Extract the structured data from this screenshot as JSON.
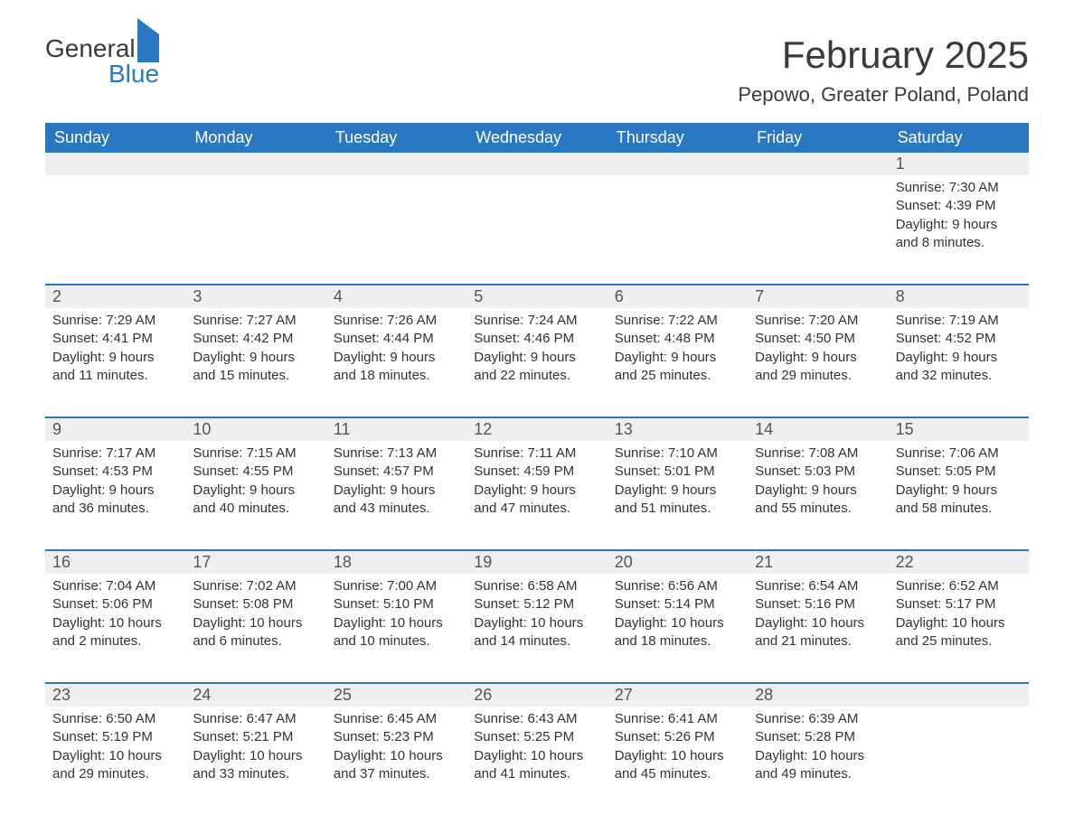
{
  "logo": {
    "line1": "General",
    "line2": "Blue"
  },
  "title": "February 2025",
  "location": "Pepowo, Greater Poland, Poland",
  "colors": {
    "header_bg": "#2b78c2",
    "header_text": "#ffffff",
    "strip_bg": "#efefef",
    "rule": "#2b78c2",
    "text": "#333333",
    "daynum": "#555555",
    "background": "#ffffff"
  },
  "weekdays": [
    "Sunday",
    "Monday",
    "Tuesday",
    "Wednesday",
    "Thursday",
    "Friday",
    "Saturday"
  ],
  "weeks": [
    [
      null,
      null,
      null,
      null,
      null,
      null,
      {
        "n": "1",
        "sunrise": "Sunrise: 7:30 AM",
        "sunset": "Sunset: 4:39 PM",
        "day1": "Daylight: 9 hours",
        "day2": "and 8 minutes."
      }
    ],
    [
      {
        "n": "2",
        "sunrise": "Sunrise: 7:29 AM",
        "sunset": "Sunset: 4:41 PM",
        "day1": "Daylight: 9 hours",
        "day2": "and 11 minutes."
      },
      {
        "n": "3",
        "sunrise": "Sunrise: 7:27 AM",
        "sunset": "Sunset: 4:42 PM",
        "day1": "Daylight: 9 hours",
        "day2": "and 15 minutes."
      },
      {
        "n": "4",
        "sunrise": "Sunrise: 7:26 AM",
        "sunset": "Sunset: 4:44 PM",
        "day1": "Daylight: 9 hours",
        "day2": "and 18 minutes."
      },
      {
        "n": "5",
        "sunrise": "Sunrise: 7:24 AM",
        "sunset": "Sunset: 4:46 PM",
        "day1": "Daylight: 9 hours",
        "day2": "and 22 minutes."
      },
      {
        "n": "6",
        "sunrise": "Sunrise: 7:22 AM",
        "sunset": "Sunset: 4:48 PM",
        "day1": "Daylight: 9 hours",
        "day2": "and 25 minutes."
      },
      {
        "n": "7",
        "sunrise": "Sunrise: 7:20 AM",
        "sunset": "Sunset: 4:50 PM",
        "day1": "Daylight: 9 hours",
        "day2": "and 29 minutes."
      },
      {
        "n": "8",
        "sunrise": "Sunrise: 7:19 AM",
        "sunset": "Sunset: 4:52 PM",
        "day1": "Daylight: 9 hours",
        "day2": "and 32 minutes."
      }
    ],
    [
      {
        "n": "9",
        "sunrise": "Sunrise: 7:17 AM",
        "sunset": "Sunset: 4:53 PM",
        "day1": "Daylight: 9 hours",
        "day2": "and 36 minutes."
      },
      {
        "n": "10",
        "sunrise": "Sunrise: 7:15 AM",
        "sunset": "Sunset: 4:55 PM",
        "day1": "Daylight: 9 hours",
        "day2": "and 40 minutes."
      },
      {
        "n": "11",
        "sunrise": "Sunrise: 7:13 AM",
        "sunset": "Sunset: 4:57 PM",
        "day1": "Daylight: 9 hours",
        "day2": "and 43 minutes."
      },
      {
        "n": "12",
        "sunrise": "Sunrise: 7:11 AM",
        "sunset": "Sunset: 4:59 PM",
        "day1": "Daylight: 9 hours",
        "day2": "and 47 minutes."
      },
      {
        "n": "13",
        "sunrise": "Sunrise: 7:10 AM",
        "sunset": "Sunset: 5:01 PM",
        "day1": "Daylight: 9 hours",
        "day2": "and 51 minutes."
      },
      {
        "n": "14",
        "sunrise": "Sunrise: 7:08 AM",
        "sunset": "Sunset: 5:03 PM",
        "day1": "Daylight: 9 hours",
        "day2": "and 55 minutes."
      },
      {
        "n": "15",
        "sunrise": "Sunrise: 7:06 AM",
        "sunset": "Sunset: 5:05 PM",
        "day1": "Daylight: 9 hours",
        "day2": "and 58 minutes."
      }
    ],
    [
      {
        "n": "16",
        "sunrise": "Sunrise: 7:04 AM",
        "sunset": "Sunset: 5:06 PM",
        "day1": "Daylight: 10 hours",
        "day2": "and 2 minutes."
      },
      {
        "n": "17",
        "sunrise": "Sunrise: 7:02 AM",
        "sunset": "Sunset: 5:08 PM",
        "day1": "Daylight: 10 hours",
        "day2": "and 6 minutes."
      },
      {
        "n": "18",
        "sunrise": "Sunrise: 7:00 AM",
        "sunset": "Sunset: 5:10 PM",
        "day1": "Daylight: 10 hours",
        "day2": "and 10 minutes."
      },
      {
        "n": "19",
        "sunrise": "Sunrise: 6:58 AM",
        "sunset": "Sunset: 5:12 PM",
        "day1": "Daylight: 10 hours",
        "day2": "and 14 minutes."
      },
      {
        "n": "20",
        "sunrise": "Sunrise: 6:56 AM",
        "sunset": "Sunset: 5:14 PM",
        "day1": "Daylight: 10 hours",
        "day2": "and 18 minutes."
      },
      {
        "n": "21",
        "sunrise": "Sunrise: 6:54 AM",
        "sunset": "Sunset: 5:16 PM",
        "day1": "Daylight: 10 hours",
        "day2": "and 21 minutes."
      },
      {
        "n": "22",
        "sunrise": "Sunrise: 6:52 AM",
        "sunset": "Sunset: 5:17 PM",
        "day1": "Daylight: 10 hours",
        "day2": "and 25 minutes."
      }
    ],
    [
      {
        "n": "23",
        "sunrise": "Sunrise: 6:50 AM",
        "sunset": "Sunset: 5:19 PM",
        "day1": "Daylight: 10 hours",
        "day2": "and 29 minutes."
      },
      {
        "n": "24",
        "sunrise": "Sunrise: 6:47 AM",
        "sunset": "Sunset: 5:21 PM",
        "day1": "Daylight: 10 hours",
        "day2": "and 33 minutes."
      },
      {
        "n": "25",
        "sunrise": "Sunrise: 6:45 AM",
        "sunset": "Sunset: 5:23 PM",
        "day1": "Daylight: 10 hours",
        "day2": "and 37 minutes."
      },
      {
        "n": "26",
        "sunrise": "Sunrise: 6:43 AM",
        "sunset": "Sunset: 5:25 PM",
        "day1": "Daylight: 10 hours",
        "day2": "and 41 minutes."
      },
      {
        "n": "27",
        "sunrise": "Sunrise: 6:41 AM",
        "sunset": "Sunset: 5:26 PM",
        "day1": "Daylight: 10 hours",
        "day2": "and 45 minutes."
      },
      {
        "n": "28",
        "sunrise": "Sunrise: 6:39 AM",
        "sunset": "Sunset: 5:28 PM",
        "day1": "Daylight: 10 hours",
        "day2": "and 49 minutes."
      },
      null
    ]
  ]
}
